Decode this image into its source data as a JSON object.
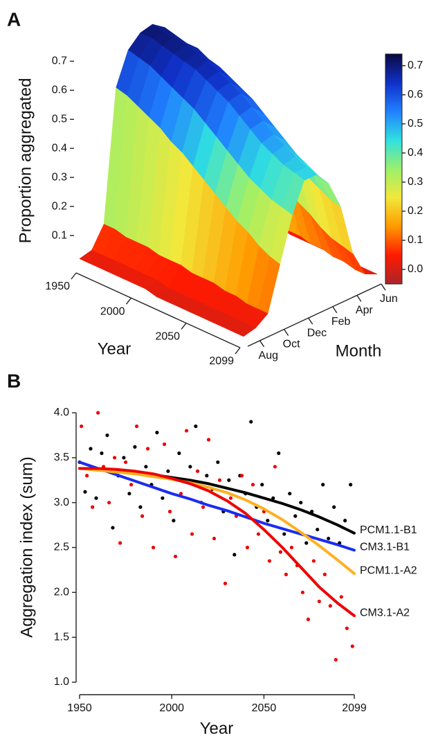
{
  "chart_data": [
    {
      "type": "surface",
      "panel": "A",
      "zlabel": "Proportion aggregated",
      "xlabel": "Year",
      "ylabel": "Month",
      "x": [
        1950,
        1960,
        1970,
        1980,
        1990,
        2000,
        2010,
        2020,
        2030,
        2040,
        2050,
        2060,
        2070,
        2080,
        2090,
        2099
      ],
      "xlim": [
        1950,
        2099
      ],
      "xticks": [
        1950,
        2000,
        2050,
        2099
      ],
      "categories": [
        null,
        "Aug",
        null,
        "Oct",
        null,
        "Dec",
        null,
        "Feb",
        null,
        "Apr",
        null,
        "Jun"
      ],
      "z": [
        [
          0.02,
          0.03,
          0.1,
          0.55,
          0.66,
          0.7,
          0.71,
          0.68,
          0.62,
          0.45,
          0.1,
          0.02
        ],
        [
          0.02,
          0.03,
          0.1,
          0.54,
          0.65,
          0.7,
          0.7,
          0.67,
          0.61,
          0.44,
          0.1,
          0.02
        ],
        [
          0.02,
          0.03,
          0.09,
          0.52,
          0.64,
          0.69,
          0.7,
          0.66,
          0.6,
          0.42,
          0.09,
          0.02
        ],
        [
          0.02,
          0.03,
          0.09,
          0.5,
          0.62,
          0.68,
          0.69,
          0.66,
          0.58,
          0.4,
          0.09,
          0.02
        ],
        [
          0.02,
          0.03,
          0.09,
          0.48,
          0.6,
          0.67,
          0.68,
          0.64,
          0.56,
          0.38,
          0.08,
          0.02
        ],
        [
          0.02,
          0.03,
          0.08,
          0.45,
          0.58,
          0.66,
          0.67,
          0.63,
          0.54,
          0.35,
          0.08,
          0.02
        ],
        [
          0.02,
          0.03,
          0.08,
          0.43,
          0.56,
          0.64,
          0.65,
          0.61,
          0.52,
          0.33,
          0.07,
          0.02
        ],
        [
          0.01,
          0.02,
          0.08,
          0.4,
          0.53,
          0.62,
          0.63,
          0.59,
          0.49,
          0.3,
          0.07,
          0.01
        ],
        [
          0.01,
          0.02,
          0.07,
          0.37,
          0.5,
          0.6,
          0.61,
          0.57,
          0.46,
          0.27,
          0.06,
          0.01
        ],
        [
          0.01,
          0.02,
          0.07,
          0.34,
          0.47,
          0.57,
          0.58,
          0.54,
          0.43,
          0.24,
          0.06,
          0.01
        ],
        [
          0.01,
          0.02,
          0.07,
          0.31,
          0.44,
          0.54,
          0.55,
          0.51,
          0.4,
          0.21,
          0.05,
          0.01
        ],
        [
          0.01,
          0.02,
          0.06,
          0.28,
          0.41,
          0.51,
          0.52,
          0.48,
          0.37,
          0.19,
          0.05,
          0.01
        ],
        [
          0.01,
          0.02,
          0.06,
          0.26,
          0.39,
          0.49,
          0.5,
          0.45,
          0.35,
          0.16,
          0.04,
          0.01
        ],
        [
          0.01,
          0.02,
          0.05,
          0.23,
          0.37,
          0.47,
          0.48,
          0.43,
          0.33,
          0.14,
          0.04,
          0.01
        ],
        [
          0.01,
          0.02,
          0.05,
          0.21,
          0.36,
          0.46,
          0.46,
          0.41,
          0.31,
          0.13,
          0.03,
          0.01
        ],
        [
          0.01,
          0.02,
          0.05,
          0.2,
          0.35,
          0.45,
          0.45,
          0.4,
          0.3,
          0.12,
          0.03,
          0.01
        ]
      ],
      "zlim": [
        0,
        0.72
      ],
      "zticks": [
        0.1,
        0.2,
        0.3,
        0.4,
        0.5,
        0.6,
        0.7
      ],
      "clim": [
        -0.05,
        0.74
      ],
      "cticks": [
        {
          "value": 0,
          "label": "0.0"
        },
        0.1,
        0.2,
        0.3,
        0.4,
        0.5,
        0.6,
        0.7
      ],
      "colorscale": [
        "#a8262a",
        "#ff1a00",
        "#ff9900",
        "#f2e83a",
        "#9cf06a",
        "#30e0e0",
        "#2080ff",
        "#1030c8",
        "#0a0a40"
      ]
    },
    {
      "type": "scatter",
      "panel": "B",
      "xlabel": "Year",
      "ylabel": "Aggregation index (sum)",
      "xlim": [
        1950,
        2099
      ],
      "xticks": [
        1950,
        2000,
        2050,
        2099
      ],
      "ylim": [
        1,
        4
      ],
      "yticks": [
        {
          "value": 1,
          "label": "1.0"
        },
        1.5,
        {
          "value": 2,
          "label": "2.0"
        },
        2.5,
        {
          "value": 3,
          "label": "3.0"
        },
        3.5,
        {
          "value": 4,
          "label": "4.0"
        }
      ],
      "series": [
        {
          "mode": "markers",
          "color": "#000000",
          "x": [
            1950,
            1953,
            1956,
            1959,
            1962,
            1965,
            1968,
            1971,
            1974,
            1977,
            1980,
            1983,
            1986,
            1989,
            1992,
            1995,
            1998,
            2001,
            2004,
            2007,
            2010,
            2013,
            2016,
            2019,
            2022,
            2025,
            2028,
            2031,
            2034,
            2037,
            2040,
            2043,
            2046,
            2049,
            2052,
            2055,
            2058,
            2061,
            2064,
            2067,
            2070,
            2073,
            2076,
            2079,
            2082,
            2085,
            2088,
            2091,
            2094,
            2097
          ],
          "values": [
            3.45,
            3.12,
            3.6,
            3.05,
            3.55,
            3.75,
            2.72,
            3.3,
            3.5,
            3.1,
            3.62,
            2.95,
            3.4,
            3.2,
            3.78,
            3.05,
            3.35,
            2.8,
            3.55,
            3.25,
            3.4,
            3.85,
            3.0,
            3.3,
            3.15,
            3.45,
            2.9,
            3.25,
            2.42,
            3.3,
            3.1,
            3.9,
            2.95,
            3.2,
            2.8,
            3.05,
            3.55,
            2.65,
            3.1,
            2.85,
            3.0,
            2.55,
            2.9,
            2.7,
            3.2,
            2.6,
            2.95,
            2.55,
            2.8,
            3.2
          ]
        },
        {
          "mode": "markers",
          "color": "#ee0000",
          "x": [
            1951,
            1954,
            1957,
            1960,
            1963,
            1966,
            1969,
            1972,
            1975,
            1978,
            1981,
            1984,
            1987,
            1990,
            1993,
            1996,
            1999,
            2002,
            2005,
            2008,
            2011,
            2014,
            2017,
            2020,
            2023,
            2026,
            2029,
            2032,
            2035,
            2038,
            2041,
            2044,
            2047,
            2050,
            2053,
            2056,
            2059,
            2062,
            2065,
            2068,
            2071,
            2074,
            2077,
            2080,
            2083,
            2086,
            2089,
            2092,
            2095,
            2098
          ],
          "values": [
            3.85,
            3.3,
            2.95,
            4.0,
            3.4,
            3.0,
            3.5,
            2.55,
            3.45,
            3.2,
            3.85,
            2.85,
            3.6,
            2.5,
            3.3,
            3.65,
            2.9,
            2.4,
            3.1,
            3.8,
            2.65,
            3.35,
            2.95,
            3.7,
            2.6,
            3.25,
            2.1,
            3.05,
            2.85,
            3.3,
            2.5,
            3.2,
            2.65,
            2.9,
            2.35,
            3.4,
            2.45,
            2.2,
            2.5,
            2.3,
            2.0,
            1.7,
            2.35,
            1.9,
            2.2,
            1.85,
            1.25,
            1.95,
            1.6,
            1.4
          ]
        },
        {
          "mode": "lines",
          "name": "PCM1.1-B1",
          "color": "#000000",
          "x": [
            1950,
            1960,
            1970,
            1980,
            1990,
            2000,
            2010,
            2020,
            2030,
            2040,
            2050,
            2060,
            2070,
            2080,
            2090,
            2099
          ],
          "values": [
            3.38,
            3.37,
            3.35,
            3.33,
            3.31,
            3.28,
            3.25,
            3.21,
            3.16,
            3.11,
            3.05,
            2.99,
            2.92,
            2.84,
            2.75,
            2.66
          ]
        },
        {
          "mode": "lines",
          "name": "CM3.1-B1",
          "color": "#1a2cf0",
          "x": [
            1950,
            1960,
            1970,
            1980,
            1990,
            2000,
            2010,
            2020,
            2030,
            2040,
            2050,
            2060,
            2070,
            2080,
            2090,
            2099
          ],
          "values": [
            3.45,
            3.38,
            3.31,
            3.24,
            3.17,
            3.1,
            3.04,
            2.97,
            2.91,
            2.84,
            2.77,
            2.71,
            2.65,
            2.59,
            2.53,
            2.47
          ]
        },
        {
          "mode": "lines",
          "name": "PCM1.1-A2",
          "color": "#ffb020",
          "x": [
            1950,
            1960,
            1970,
            1980,
            1990,
            2000,
            2010,
            2020,
            2030,
            2040,
            2050,
            2060,
            2070,
            2080,
            2090,
            2099
          ],
          "values": [
            3.38,
            3.36,
            3.34,
            3.32,
            3.29,
            3.26,
            3.22,
            3.17,
            3.11,
            3.03,
            2.93,
            2.81,
            2.67,
            2.52,
            2.36,
            2.21
          ]
        },
        {
          "mode": "lines",
          "name": "CM3.1-A2",
          "color": "#ee0000",
          "x": [
            1950,
            1960,
            1970,
            1980,
            1990,
            2000,
            2010,
            2020,
            2030,
            2040,
            2050,
            2060,
            2070,
            2080,
            2090,
            2099
          ],
          "values": [
            3.38,
            3.38,
            3.37,
            3.35,
            3.32,
            3.27,
            3.21,
            3.13,
            3.02,
            2.88,
            2.7,
            2.5,
            2.28,
            2.06,
            1.88,
            1.74
          ]
        }
      ]
    }
  ]
}
